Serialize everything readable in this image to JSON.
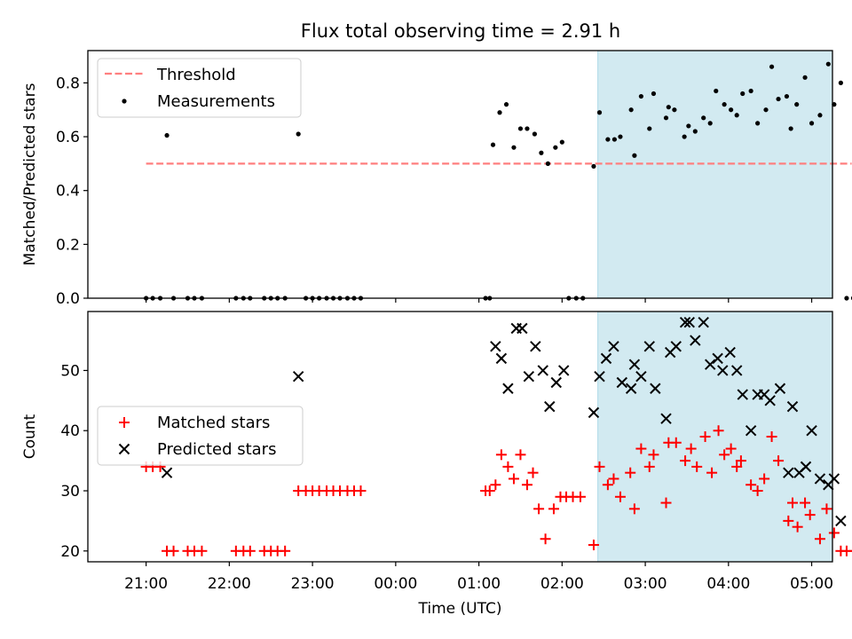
{
  "figure": {
    "title": "Flux total observing time = 2.91 h",
    "xlabel": "Time (UTC)",
    "colors": {
      "threshold": "#ff7f7f",
      "measurements": "#000000",
      "matched": "#ff0000",
      "predicted": "#000000",
      "shade": "#add8e6"
    }
  },
  "chart_data": [
    {
      "type": "scatter",
      "panel": "top",
      "ylabel": "Matched/Predicted stars",
      "xlim_hours": [
        20.3,
        29.25
      ],
      "ylim": [
        0,
        0.92
      ],
      "yticks": [
        0.0,
        0.2,
        0.4,
        0.6,
        0.8
      ],
      "ytick_labels": [
        "0.0",
        "0.2",
        "0.4",
        "0.6",
        "0.8"
      ],
      "shaded_interval_hours": [
        26.43,
        29.35
      ],
      "legend": {
        "position": "top-left",
        "entries": [
          "Threshold",
          "Measurements"
        ]
      },
      "threshold": {
        "name": "Threshold",
        "y": 0.5,
        "x_range_hours": [
          21.0,
          29.48
        ]
      },
      "series": [
        {
          "name": "Measurements",
          "marker": "dot",
          "points": [
            [
              21.0,
              0
            ],
            [
              21.08,
              0
            ],
            [
              21.17,
              0
            ],
            [
              21.25,
              0.605
            ],
            [
              21.33,
              0
            ],
            [
              21.5,
              0
            ],
            [
              21.58,
              0
            ],
            [
              21.67,
              0
            ],
            [
              22.08,
              0
            ],
            [
              22.17,
              0
            ],
            [
              22.25,
              0
            ],
            [
              22.42,
              0
            ],
            [
              22.5,
              0
            ],
            [
              22.58,
              0
            ],
            [
              22.67,
              0
            ],
            [
              22.83,
              0.61
            ],
            [
              22.92,
              0
            ],
            [
              23.0,
              0
            ],
            [
              23.08,
              0
            ],
            [
              23.17,
              0
            ],
            [
              23.25,
              0
            ],
            [
              23.33,
              0
            ],
            [
              23.42,
              0
            ],
            [
              23.5,
              0
            ],
            [
              23.58,
              0
            ],
            [
              25.08,
              0
            ],
            [
              25.13,
              0
            ],
            [
              25.17,
              0.57
            ],
            [
              25.25,
              0.69
            ],
            [
              25.33,
              0.72
            ],
            [
              25.42,
              0.56
            ],
            [
              25.5,
              0.63
            ],
            [
              25.58,
              0.63
            ],
            [
              25.67,
              0.61
            ],
            [
              25.75,
              0.54
            ],
            [
              25.83,
              0.5
            ],
            [
              25.92,
              0.56
            ],
            [
              26.0,
              0.58
            ],
            [
              26.08,
              0
            ],
            [
              26.17,
              0
            ],
            [
              26.25,
              0
            ],
            [
              26.38,
              0.49
            ],
            [
              26.45,
              0.69
            ],
            [
              26.55,
              0.59
            ],
            [
              26.63,
              0.59
            ],
            [
              26.7,
              0.6
            ],
            [
              26.83,
              0.7
            ],
            [
              26.87,
              0.53
            ],
            [
              26.95,
              0.75
            ],
            [
              27.05,
              0.63
            ],
            [
              27.1,
              0.76
            ],
            [
              27.25,
              0.67
            ],
            [
              27.28,
              0.71
            ],
            [
              27.35,
              0.7
            ],
            [
              27.47,
              0.6
            ],
            [
              27.52,
              0.64
            ],
            [
              27.6,
              0.62
            ],
            [
              27.7,
              0.67
            ],
            [
              27.78,
              0.65
            ],
            [
              27.85,
              0.77
            ],
            [
              27.95,
              0.72
            ],
            [
              28.03,
              0.7
            ],
            [
              28.1,
              0.68
            ],
            [
              28.17,
              0.76
            ],
            [
              28.27,
              0.77
            ],
            [
              28.35,
              0.65
            ],
            [
              28.45,
              0.7
            ],
            [
              28.52,
              0.86
            ],
            [
              28.6,
              0.74
            ],
            [
              28.7,
              0.75
            ],
            [
              28.75,
              0.63
            ],
            [
              28.82,
              0.72
            ],
            [
              28.92,
              0.82
            ],
            [
              29.0,
              0.65
            ],
            [
              29.1,
              0.68
            ],
            [
              29.2,
              0.87
            ],
            [
              29.27,
              0.72
            ],
            [
              29.35,
              0.8
            ],
            [
              29.42,
              0
            ],
            [
              29.5,
              0
            ]
          ]
        }
      ]
    },
    {
      "type": "scatter",
      "panel": "bottom",
      "ylabel": "Count",
      "xlim_hours": [
        20.3,
        29.25
      ],
      "ylim": [
        18.2,
        59.8
      ],
      "yticks": [
        20,
        30,
        40,
        50
      ],
      "ytick_labels": [
        "20",
        "30",
        "40",
        "50"
      ],
      "xticks_hours": [
        21,
        22,
        23,
        24,
        25,
        26,
        27,
        28,
        29
      ],
      "xtick_labels": [
        "21:00",
        "22:00",
        "23:00",
        "00:00",
        "01:00",
        "02:00",
        "03:00",
        "04:00",
        "05:00"
      ],
      "shaded_interval_hours": [
        26.43,
        29.35
      ],
      "legend": {
        "position": "center-left",
        "entries": [
          "Matched stars",
          "Predicted stars"
        ]
      },
      "series": [
        {
          "name": "Matched stars",
          "marker": "plus",
          "points": [
            [
              21.0,
              34
            ],
            [
              21.08,
              34
            ],
            [
              21.17,
              34
            ],
            [
              21.25,
              20
            ],
            [
              21.33,
              20
            ],
            [
              21.5,
              20
            ],
            [
              21.58,
              20
            ],
            [
              21.67,
              20
            ],
            [
              22.08,
              20
            ],
            [
              22.17,
              20
            ],
            [
              22.25,
              20
            ],
            [
              22.42,
              20
            ],
            [
              22.5,
              20
            ],
            [
              22.58,
              20
            ],
            [
              22.67,
              20
            ],
            [
              22.83,
              30
            ],
            [
              22.92,
              30
            ],
            [
              23.0,
              30
            ],
            [
              23.08,
              30
            ],
            [
              23.17,
              30
            ],
            [
              23.25,
              30
            ],
            [
              23.33,
              30
            ],
            [
              23.42,
              30
            ],
            [
              23.5,
              30
            ],
            [
              23.58,
              30
            ],
            [
              25.08,
              30
            ],
            [
              25.13,
              30
            ],
            [
              25.2,
              31
            ],
            [
              25.27,
              36
            ],
            [
              25.35,
              34
            ],
            [
              25.42,
              32
            ],
            [
              25.5,
              36
            ],
            [
              25.58,
              31
            ],
            [
              25.65,
              33
            ],
            [
              25.72,
              27
            ],
            [
              25.8,
              22
            ],
            [
              25.9,
              27
            ],
            [
              25.98,
              29
            ],
            [
              26.05,
              29
            ],
            [
              26.13,
              29
            ],
            [
              26.22,
              29
            ],
            [
              26.38,
              21
            ],
            [
              26.45,
              34
            ],
            [
              26.55,
              31
            ],
            [
              26.62,
              32
            ],
            [
              26.7,
              29
            ],
            [
              26.82,
              33
            ],
            [
              26.87,
              27
            ],
            [
              26.95,
              37
            ],
            [
              27.05,
              34
            ],
            [
              27.1,
              36
            ],
            [
              27.25,
              28
            ],
            [
              27.28,
              38
            ],
            [
              27.37,
              38
            ],
            [
              27.48,
              35
            ],
            [
              27.55,
              37
            ],
            [
              27.62,
              34
            ],
            [
              27.72,
              39
            ],
            [
              27.8,
              33
            ],
            [
              27.88,
              40
            ],
            [
              27.95,
              36
            ],
            [
              28.03,
              37
            ],
            [
              28.1,
              34
            ],
            [
              28.15,
              35
            ],
            [
              28.27,
              31
            ],
            [
              28.35,
              30
            ],
            [
              28.43,
              32
            ],
            [
              28.52,
              39
            ],
            [
              28.6,
              35
            ],
            [
              28.72,
              25
            ],
            [
              28.77,
              28
            ],
            [
              28.83,
              24
            ],
            [
              28.92,
              28
            ],
            [
              28.98,
              26
            ],
            [
              29.1,
              22
            ],
            [
              29.18,
              27
            ],
            [
              29.27,
              23
            ],
            [
              29.35,
              20
            ],
            [
              29.42,
              20
            ],
            [
              29.5,
              20
            ]
          ]
        },
        {
          "name": "Predicted stars",
          "marker": "x",
          "points": [
            [
              21.25,
              33
            ],
            [
              22.83,
              49
            ],
            [
              25.2,
              54
            ],
            [
              25.27,
              52
            ],
            [
              25.35,
              47
            ],
            [
              25.45,
              57
            ],
            [
              25.52,
              57
            ],
            [
              25.6,
              49
            ],
            [
              25.68,
              54
            ],
            [
              25.77,
              50
            ],
            [
              25.85,
              44
            ],
            [
              25.93,
              48
            ],
            [
              26.02,
              50
            ],
            [
              26.38,
              43
            ],
            [
              26.45,
              49
            ],
            [
              26.53,
              52
            ],
            [
              26.62,
              54
            ],
            [
              26.72,
              48
            ],
            [
              26.83,
              47
            ],
            [
              26.87,
              51
            ],
            [
              26.95,
              49
            ],
            [
              27.05,
              54
            ],
            [
              27.12,
              47
            ],
            [
              27.25,
              42
            ],
            [
              27.3,
              53
            ],
            [
              27.37,
              54
            ],
            [
              27.48,
              58
            ],
            [
              27.53,
              58
            ],
            [
              27.6,
              55
            ],
            [
              27.7,
              58
            ],
            [
              27.78,
              51
            ],
            [
              27.87,
              52
            ],
            [
              27.93,
              50
            ],
            [
              28.02,
              53
            ],
            [
              28.1,
              50
            ],
            [
              28.17,
              46
            ],
            [
              28.27,
              40
            ],
            [
              28.35,
              46
            ],
            [
              28.43,
              46
            ],
            [
              28.5,
              45
            ],
            [
              28.62,
              47
            ],
            [
              28.72,
              33
            ],
            [
              28.77,
              44
            ],
            [
              28.85,
              33
            ],
            [
              28.93,
              34
            ],
            [
              29.0,
              40
            ],
            [
              29.1,
              32
            ],
            [
              29.2,
              31
            ],
            [
              29.27,
              32
            ],
            [
              29.35,
              25
            ]
          ]
        }
      ]
    }
  ]
}
